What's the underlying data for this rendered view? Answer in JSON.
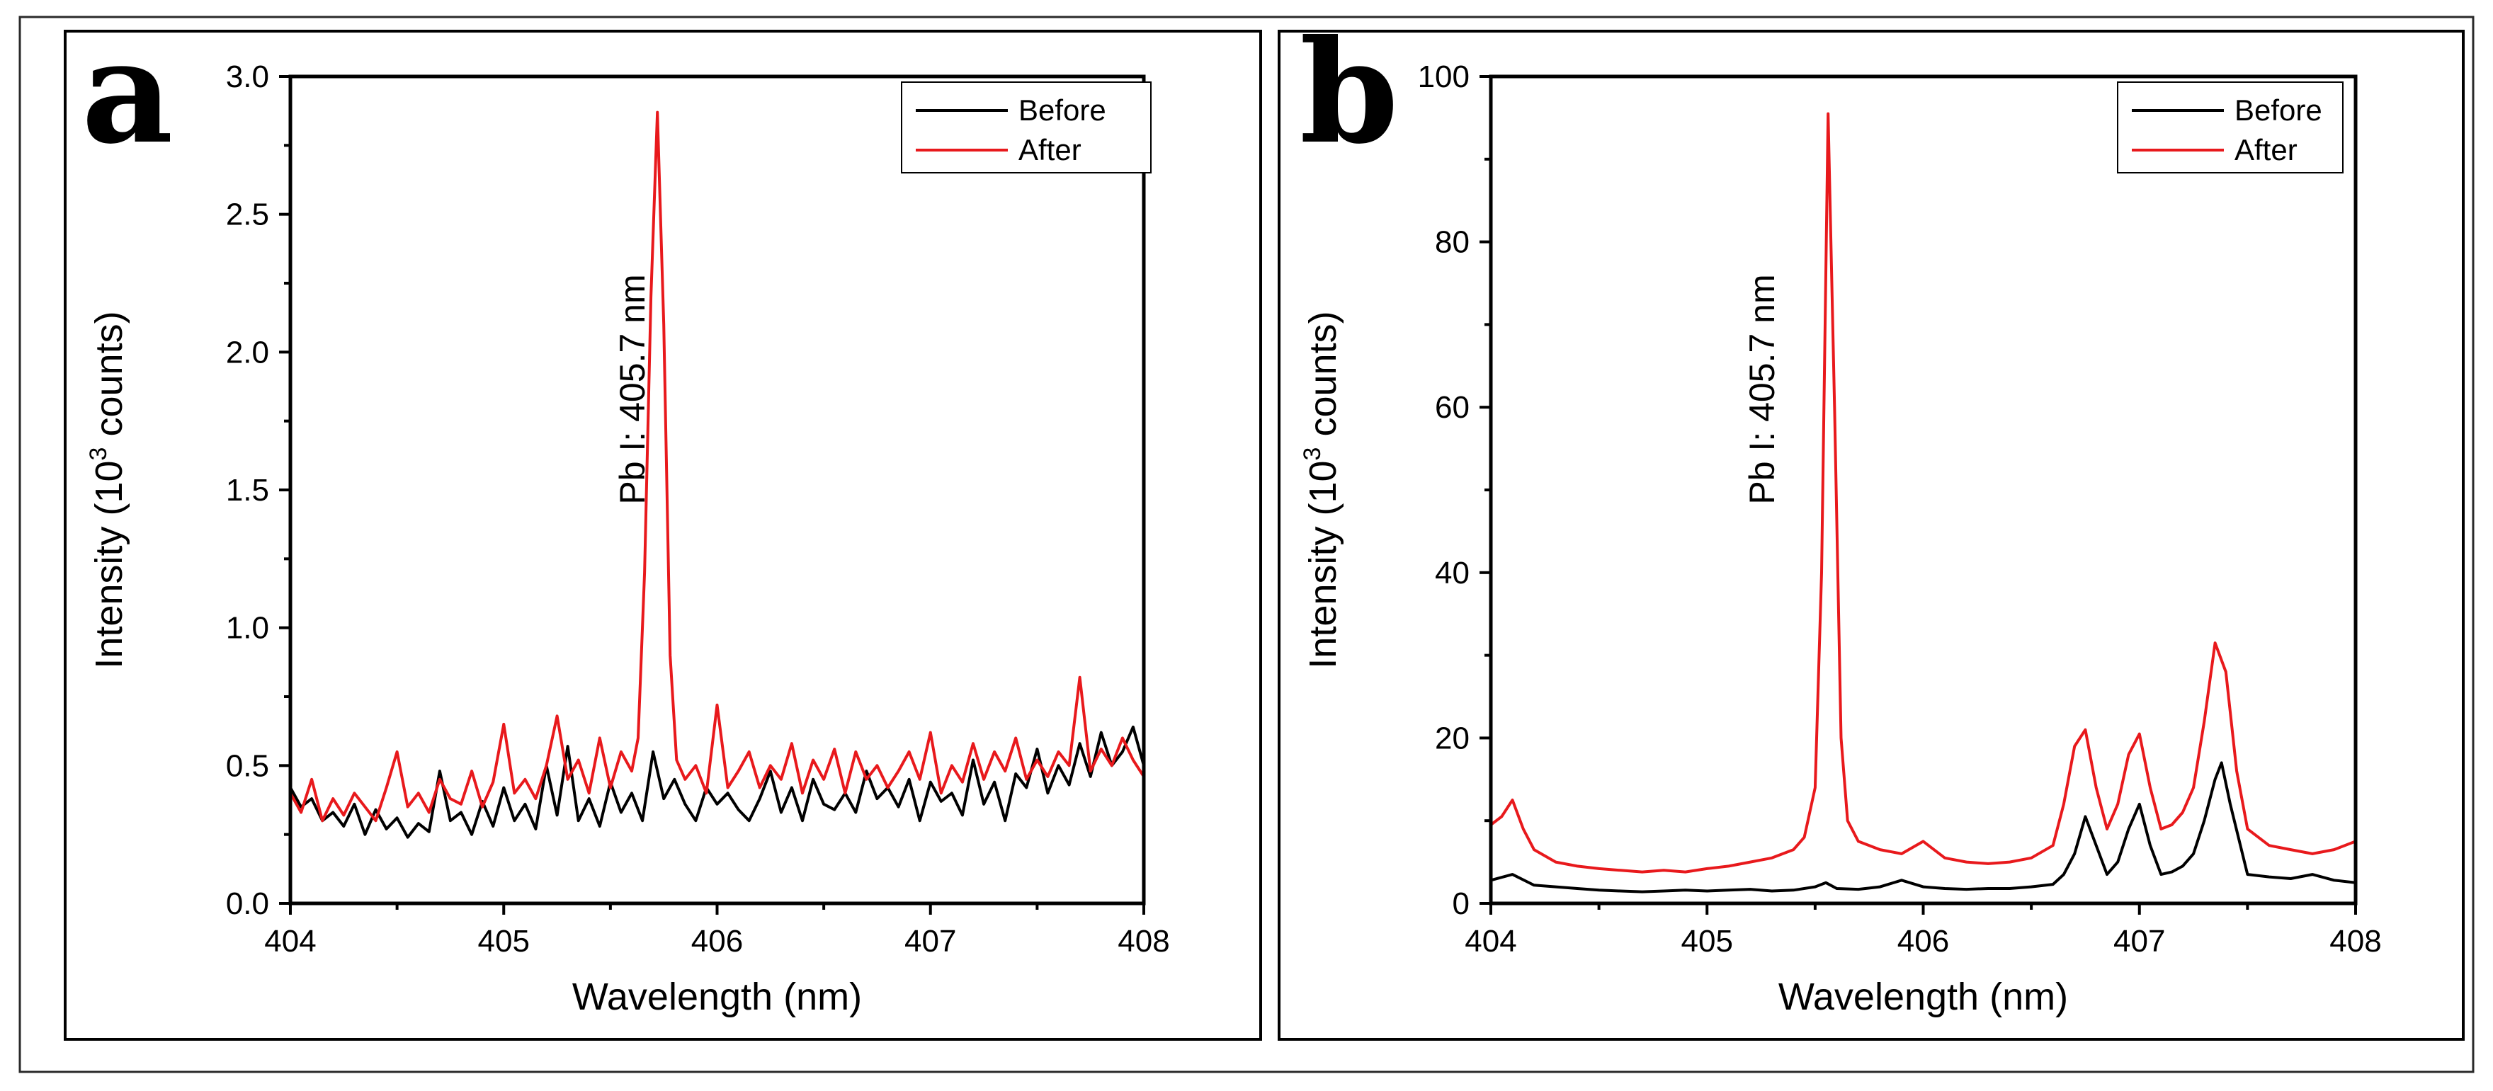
{
  "chart_data": [
    {
      "panel_letter": "a",
      "type": "line",
      "title": "",
      "xlabel": "Wavelength (nm)",
      "ylabel": {
        "prefix": "Intensity (10",
        "sup": "3",
        "suffix": " counts)"
      },
      "xlim": [
        404,
        408
      ],
      "ylim": [
        0,
        3.0
      ],
      "xticks": [
        "404",
        "405",
        "406",
        "407",
        "408"
      ],
      "yticks": [
        "0.0",
        "0.5",
        "1.0",
        "1.5",
        "2.0",
        "2.5",
        "3.0"
      ],
      "annotation": "Pb I: 405.7 nm",
      "legend_position": "top-right",
      "series": [
        {
          "name": "Before",
          "color": "#000000",
          "x": [
            404.0,
            404.05,
            404.1,
            404.15,
            404.2,
            404.25,
            404.3,
            404.35,
            404.4,
            404.45,
            404.5,
            404.55,
            404.6,
            404.65,
            404.7,
            404.75,
            404.8,
            404.85,
            404.9,
            404.95,
            405.0,
            405.05,
            405.1,
            405.15,
            405.2,
            405.25,
            405.3,
            405.35,
            405.4,
            405.45,
            405.5,
            405.55,
            405.6,
            405.65,
            405.7,
            405.75,
            405.8,
            405.85,
            405.9,
            405.95,
            406.0,
            406.05,
            406.1,
            406.15,
            406.2,
            406.25,
            406.3,
            406.35,
            406.4,
            406.45,
            406.5,
            406.55,
            406.6,
            406.65,
            406.7,
            406.75,
            406.8,
            406.85,
            406.9,
            406.95,
            407.0,
            407.05,
            407.1,
            407.15,
            407.2,
            407.25,
            407.3,
            407.35,
            407.4,
            407.45,
            407.5,
            407.55,
            407.6,
            407.65,
            407.7,
            407.75,
            407.8,
            407.85,
            407.9,
            407.95,
            408.0
          ],
          "values": [
            0.42,
            0.35,
            0.38,
            0.3,
            0.33,
            0.28,
            0.36,
            0.25,
            0.34,
            0.27,
            0.31,
            0.24,
            0.29,
            0.26,
            0.48,
            0.3,
            0.33,
            0.25,
            0.37,
            0.28,
            0.42,
            0.3,
            0.36,
            0.27,
            0.5,
            0.32,
            0.57,
            0.3,
            0.38,
            0.28,
            0.44,
            0.33,
            0.4,
            0.3,
            0.55,
            0.38,
            0.45,
            0.36,
            0.3,
            0.42,
            0.36,
            0.4,
            0.34,
            0.3,
            0.38,
            0.48,
            0.33,
            0.42,
            0.3,
            0.45,
            0.36,
            0.34,
            0.4,
            0.33,
            0.48,
            0.38,
            0.42,
            0.35,
            0.45,
            0.3,
            0.44,
            0.37,
            0.4,
            0.32,
            0.52,
            0.36,
            0.44,
            0.3,
            0.47,
            0.42,
            0.56,
            0.4,
            0.5,
            0.43,
            0.58,
            0.46,
            0.62,
            0.5,
            0.55,
            0.64,
            0.5
          ]
        },
        {
          "name": "After",
          "color": "#e8191c",
          "x": [
            404.0,
            404.05,
            404.1,
            404.15,
            404.2,
            404.25,
            404.3,
            404.35,
            404.4,
            404.45,
            404.5,
            404.55,
            404.6,
            404.65,
            404.7,
            404.75,
            404.8,
            404.85,
            404.9,
            404.95,
            405.0,
            405.05,
            405.1,
            405.15,
            405.2,
            405.25,
            405.3,
            405.35,
            405.4,
            405.45,
            405.5,
            405.55,
            405.6,
            405.63,
            405.66,
            405.69,
            405.72,
            405.75,
            405.78,
            405.81,
            405.85,
            405.9,
            405.95,
            406.0,
            406.05,
            406.1,
            406.15,
            406.2,
            406.25,
            406.3,
            406.35,
            406.4,
            406.45,
            406.5,
            406.55,
            406.6,
            406.65,
            406.7,
            406.75,
            406.8,
            406.85,
            406.9,
            406.95,
            407.0,
            407.05,
            407.1,
            407.15,
            407.2,
            407.25,
            407.3,
            407.35,
            407.4,
            407.45,
            407.5,
            407.55,
            407.6,
            407.65,
            407.7,
            407.75,
            407.8,
            407.85,
            407.9,
            407.95,
            408.0
          ],
          "values": [
            0.4,
            0.33,
            0.45,
            0.3,
            0.38,
            0.32,
            0.4,
            0.35,
            0.3,
            0.42,
            0.55,
            0.35,
            0.4,
            0.33,
            0.45,
            0.38,
            0.36,
            0.48,
            0.35,
            0.44,
            0.65,
            0.4,
            0.45,
            0.38,
            0.5,
            0.68,
            0.45,
            0.52,
            0.4,
            0.6,
            0.42,
            0.55,
            0.48,
            0.6,
            1.2,
            2.2,
            2.87,
            2.1,
            0.9,
            0.52,
            0.45,
            0.5,
            0.4,
            0.72,
            0.42,
            0.48,
            0.55,
            0.42,
            0.5,
            0.45,
            0.58,
            0.4,
            0.52,
            0.45,
            0.56,
            0.4,
            0.55,
            0.45,
            0.5,
            0.42,
            0.48,
            0.55,
            0.45,
            0.62,
            0.4,
            0.5,
            0.44,
            0.58,
            0.45,
            0.55,
            0.48,
            0.6,
            0.45,
            0.52,
            0.46,
            0.55,
            0.5,
            0.82,
            0.48,
            0.56,
            0.5,
            0.6,
            0.52,
            0.46
          ]
        }
      ]
    },
    {
      "panel_letter": "b",
      "type": "line",
      "title": "",
      "xlabel": "Wavelength (nm)",
      "ylabel": {
        "prefix": "Intensity (10",
        "sup": "3",
        "suffix": " counts)"
      },
      "xlim": [
        404,
        408
      ],
      "ylim": [
        0,
        100
      ],
      "xticks": [
        "404",
        "405",
        "406",
        "407",
        "408"
      ],
      "yticks": [
        "0",
        "20",
        "40",
        "60",
        "80",
        "100"
      ],
      "annotation": "Pb I: 405.7 nm",
      "legend_position": "top-right",
      "series": [
        {
          "name": "Before",
          "color": "#000000",
          "x": [
            404.0,
            404.1,
            404.2,
            404.3,
            404.4,
            404.5,
            404.6,
            404.7,
            404.8,
            404.9,
            405.0,
            405.1,
            405.2,
            405.3,
            405.4,
            405.5,
            405.55,
            405.6,
            405.7,
            405.8,
            405.9,
            406.0,
            406.1,
            406.2,
            406.3,
            406.4,
            406.5,
            406.6,
            406.65,
            406.7,
            406.75,
            406.8,
            406.85,
            406.9,
            406.95,
            407.0,
            407.05,
            407.1,
            407.15,
            407.2,
            407.25,
            407.3,
            407.35,
            407.38,
            407.42,
            407.5,
            407.6,
            407.7,
            407.8,
            407.9,
            408.0
          ],
          "values": [
            2.8,
            3.5,
            2.2,
            2.0,
            1.8,
            1.6,
            1.5,
            1.4,
            1.5,
            1.6,
            1.5,
            1.6,
            1.7,
            1.5,
            1.6,
            2.0,
            2.5,
            1.8,
            1.7,
            2.0,
            2.8,
            2.0,
            1.8,
            1.7,
            1.8,
            1.8,
            2.0,
            2.3,
            3.5,
            6.0,
            10.5,
            7.0,
            3.5,
            5.0,
            9.0,
            12.0,
            7.0,
            3.5,
            3.8,
            4.5,
            6.0,
            10.0,
            15.0,
            17.0,
            12.0,
            3.5,
            3.2,
            3.0,
            3.5,
            2.8,
            2.5
          ]
        },
        {
          "name": "After",
          "color": "#e8191c",
          "x": [
            404.0,
            404.05,
            404.1,
            404.15,
            404.2,
            404.3,
            404.4,
            404.5,
            404.6,
            404.7,
            404.8,
            404.9,
            405.0,
            405.1,
            405.2,
            405.3,
            405.4,
            405.45,
            405.5,
            405.53,
            405.56,
            405.59,
            405.62,
            405.65,
            405.7,
            405.8,
            405.9,
            406.0,
            406.1,
            406.2,
            406.3,
            406.4,
            406.5,
            406.6,
            406.65,
            406.7,
            406.75,
            406.8,
            406.85,
            406.9,
            406.95,
            407.0,
            407.05,
            407.1,
            407.15,
            407.2,
            407.25,
            407.3,
            407.35,
            407.4,
            407.45,
            407.5,
            407.6,
            407.7,
            407.8,
            407.9,
            408.0
          ],
          "values": [
            9.5,
            10.5,
            12.5,
            9.0,
            6.5,
            5.0,
            4.5,
            4.2,
            4.0,
            3.8,
            4.0,
            3.8,
            4.2,
            4.5,
            5.0,
            5.5,
            6.5,
            8.0,
            14.0,
            40.0,
            95.5,
            60.0,
            20.0,
            10.0,
            7.5,
            6.5,
            6.0,
            7.5,
            5.5,
            5.0,
            4.8,
            5.0,
            5.5,
            7.0,
            12.0,
            19.0,
            21.0,
            14.0,
            9.0,
            12.0,
            18.0,
            20.5,
            14.0,
            9.0,
            9.5,
            11.0,
            14.0,
            22.0,
            31.5,
            28.0,
            16.0,
            9.0,
            7.0,
            6.5,
            6.0,
            6.5,
            7.5
          ]
        }
      ]
    }
  ]
}
